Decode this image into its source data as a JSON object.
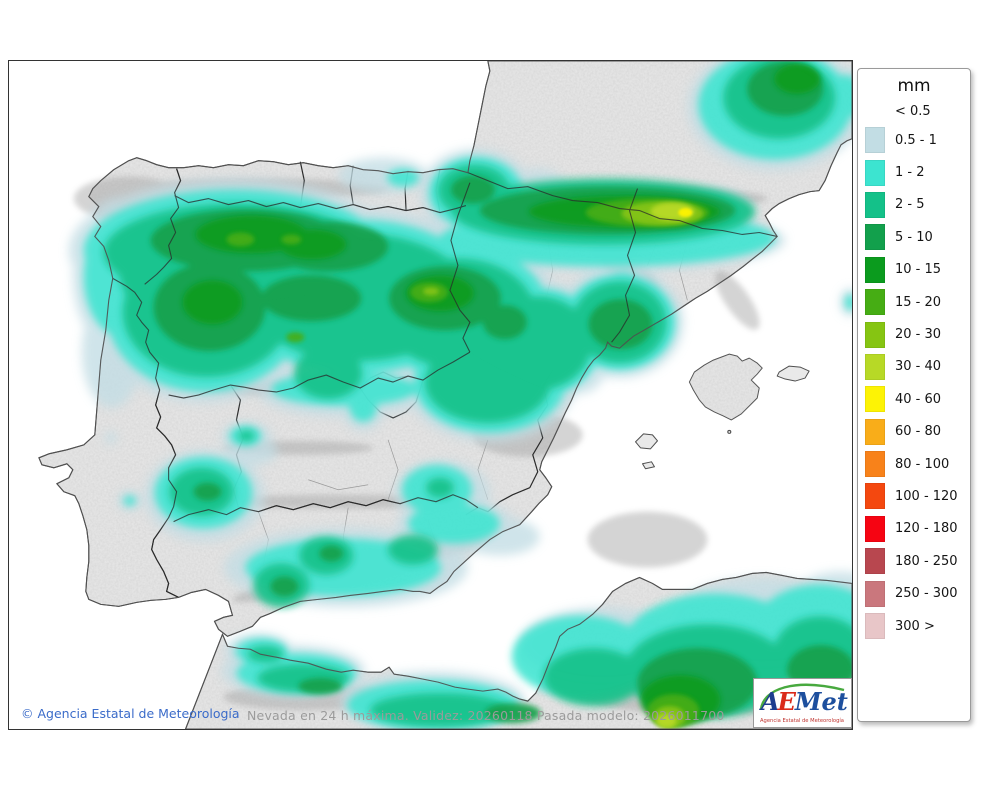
{
  "window": {
    "kind": "meteorological precipitation map"
  },
  "legend": {
    "title": "mm",
    "no_swatch_entry": "< 0.5",
    "entries": [
      {
        "label": "0.5 - 1",
        "color": "#c2dde4"
      },
      {
        "label": "1 - 2",
        "color": "#3ce4d0"
      },
      {
        "label": "2 - 5",
        "color": "#14c189"
      },
      {
        "label": "5 - 10",
        "color": "#12a04c"
      },
      {
        "label": "10 - 15",
        "color": "#0b9b1e"
      },
      {
        "label": "15 - 20",
        "color": "#46ad14"
      },
      {
        "label": "20 - 30",
        "color": "#86c512"
      },
      {
        "label": "30 - 40",
        "color": "#b7d926"
      },
      {
        "label": "40 - 60",
        "color": "#fdf305"
      },
      {
        "label": "60 - 80",
        "color": "#f9ad19"
      },
      {
        "label": "80 - 100",
        "color": "#f8821a"
      },
      {
        "label": "100 - 120",
        "color": "#f4480f"
      },
      {
        "label": "120 - 180",
        "color": "#f60412"
      },
      {
        "label": "180 - 250",
        "color": "#b8474f"
      },
      {
        "label": "250 - 300",
        "color": "#ca777d"
      },
      {
        "label": "300 >",
        "color": "#e8c6c8"
      }
    ]
  },
  "footer": {
    "copyright": "© Agencia Estatal de Meteorología",
    "caption": "Nevada en 24 h máxima. Validez: 20260118 Pasada modelo: 2026011700"
  },
  "logo": {
    "letter_a": "A",
    "letter_e": "E",
    "letter_met": "Met",
    "subtitle": "Agencia Estatal de Meteorología"
  },
  "colors": {
    "sea": "#ffffff",
    "land": "#e9e9e9",
    "coastline": "#4f4f4f",
    "region_border": "#2a2a2a",
    "province_border": "#9a9a9a",
    "copyright_text": "#3a6bc9",
    "caption_text": "#9b9b9b",
    "logo_blue": "#1d3d8f",
    "logo_red": "#da2a1a",
    "logo_green": "#48a93f"
  }
}
